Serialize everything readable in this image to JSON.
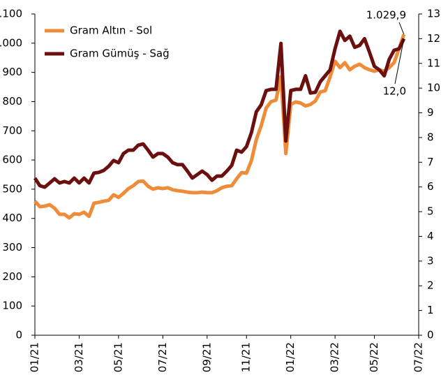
{
  "chart_data": {
    "type": "line",
    "categories": [
      "01/21",
      null,
      null,
      null,
      null,
      null,
      null,
      null,
      null,
      "03/21",
      null,
      null,
      null,
      null,
      null,
      null,
      null,
      "05/21",
      null,
      null,
      null,
      null,
      null,
      null,
      null,
      null,
      "07/21",
      null,
      null,
      null,
      null,
      null,
      null,
      null,
      null,
      "09/21",
      null,
      null,
      null,
      null,
      null,
      null,
      null,
      "11/21",
      null,
      null,
      null,
      null,
      null,
      null,
      null,
      null,
      "01/22",
      null,
      null,
      null,
      null,
      null,
      null,
      null,
      null,
      "03/22",
      null,
      null,
      null,
      null,
      null,
      null,
      null,
      "05/22",
      null,
      null,
      null,
      null,
      null,
      null,
      null,
      null,
      "07/22"
    ],
    "series": [
      {
        "name": "Gram Altın - Sol",
        "color": "#ee8c3a",
        "values": [
          459,
          440,
          442,
          447,
          435,
          414,
          414,
          402,
          416,
          414,
          421,
          407,
          452,
          455,
          459,
          462,
          481,
          472,
          486,
          502,
          512,
          526,
          528,
          510,
          500,
          505,
          502,
          505,
          498,
          495,
          493,
          490,
          488,
          488,
          490,
          488,
          488,
          495,
          505,
          510,
          512,
          536,
          557,
          555,
          598,
          670,
          718,
          778,
          800,
          805,
          885,
          622,
          790,
          799,
          795,
          785,
          790,
          802,
          833,
          837,
          885,
          938,
          916,
          933,
          909,
          921,
          928,
          916,
          909,
          904,
          909,
          904,
          916,
          933,
          981,
          1029.9,
          null,
          null,
          null
        ]
      },
      {
        "name": "Gram Gümüş - Sağ",
        "color": "#6b0f0f",
        "axis": "y2",
        "values": [
          6.36,
          6.05,
          5.99,
          6.16,
          6.33,
          6.16,
          6.22,
          6.16,
          6.36,
          6.16,
          6.36,
          6.16,
          6.56,
          6.59,
          6.67,
          6.84,
          7.07,
          6.98,
          7.35,
          7.49,
          7.49,
          7.69,
          7.74,
          7.49,
          7.21,
          7.35,
          7.35,
          7.21,
          6.98,
          6.9,
          6.9,
          6.64,
          6.36,
          6.5,
          6.64,
          6.5,
          6.27,
          6.44,
          6.44,
          6.64,
          6.87,
          7.49,
          7.41,
          7.63,
          8.2,
          9.04,
          9.33,
          9.9,
          9.95,
          9.95,
          11.81,
          7.86,
          9.9,
          9.95,
          9.95,
          10.5,
          9.8,
          9.83,
          10.26,
          10.5,
          10.74,
          11.59,
          12.3,
          11.93,
          12.1,
          11.65,
          11.73,
          12.0,
          11.45,
          10.88,
          10.74,
          10.5,
          11.16,
          11.53,
          11.59,
          12.0,
          null,
          null,
          null
        ]
      }
    ],
    "ylim": [
      0,
      1100
    ],
    "yticks": [
      0,
      100,
      200,
      300,
      400,
      500,
      600,
      700,
      800,
      900,
      {
        "value": 1000,
        "label": "1.000"
      },
      {
        "value": 1100,
        "label": "1.100"
      }
    ],
    "y2lim": [
      0,
      13
    ],
    "y2ticks": [
      0,
      1,
      2,
      3,
      4,
      5,
      6,
      7,
      8,
      9,
      10,
      11,
      12,
      13
    ],
    "annotations": [
      "1.029,9",
      "12,0"
    ],
    "legend": "upper left"
  }
}
